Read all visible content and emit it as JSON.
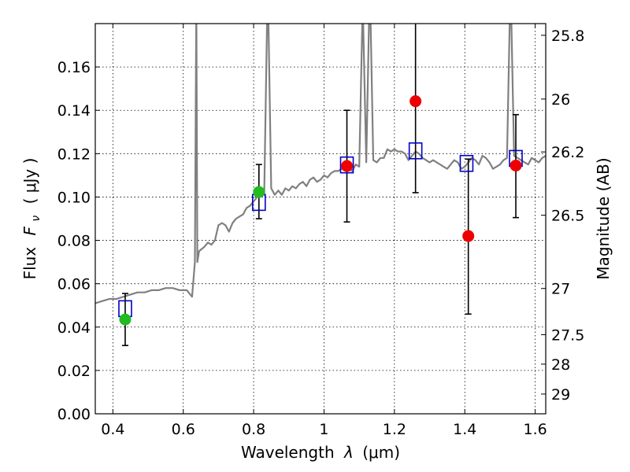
{
  "chart_data": {
    "type": "scatter",
    "xlabel_prefix": "Wavelength",
    "xlabel_symbol": "λ",
    "xlabel_unit": "(μm)",
    "ylabel_prefix": "Flux",
    "ylabel_symbol": "F",
    "ylabel_sub": "ν",
    "ylabel_unit": "( μJy )",
    "y2label": "Magnitude (AB)",
    "xlim": [
      0.35,
      1.63
    ],
    "ylim": [
      0.0,
      0.18
    ],
    "x_ticks": [
      0.4,
      0.6,
      0.8,
      1.0,
      1.2,
      1.4,
      1.6
    ],
    "x_tick_labels": [
      "0.4",
      "0.6",
      "0.8",
      "1",
      "1.2",
      "1.4",
      "1.6"
    ],
    "y_ticks": [
      0.0,
      0.02,
      0.04,
      0.06,
      0.08,
      0.1,
      0.12,
      0.14,
      0.16
    ],
    "y_tick_labels": [
      "0.00",
      "0.02",
      "0.04",
      "0.06",
      "0.08",
      "0.10",
      "0.12",
      "0.14",
      "0.16"
    ],
    "y2_ticks": [
      {
        "label": "25.8",
        "flux": 0.1746
      },
      {
        "label": "26",
        "flux": 0.1452
      },
      {
        "label": "26.2",
        "flux": 0.1208
      },
      {
        "label": "26.5",
        "flux": 0.0916
      },
      {
        "label": "27",
        "flux": 0.0578
      },
      {
        "label": "27.5",
        "flux": 0.0365
      },
      {
        "label": "28",
        "flux": 0.0229
      },
      {
        "label": "29",
        "flux": 0.0091
      }
    ],
    "grid": true,
    "colors": {
      "spectrum": "#808080",
      "model_box": "#0000cc",
      "green": "#22bb22",
      "red": "#ee0000",
      "errorbar": "#000000"
    },
    "series": [
      {
        "kind": "model_spectrum",
        "x": [
          0.35,
          0.37,
          0.39,
          0.41,
          0.43,
          0.45,
          0.47,
          0.49,
          0.51,
          0.53,
          0.55,
          0.57,
          0.59,
          0.61,
          0.625,
          0.633,
          0.637,
          0.64,
          0.645,
          0.652,
          0.66,
          0.67,
          0.68,
          0.69,
          0.7,
          0.71,
          0.72,
          0.73,
          0.74,
          0.75,
          0.76,
          0.77,
          0.78,
          0.79,
          0.8,
          0.81,
          0.82,
          0.83,
          0.84,
          0.85,
          0.86,
          0.87,
          0.88,
          0.89,
          0.9,
          0.91,
          0.92,
          0.93,
          0.94,
          0.95,
          0.96,
          0.97,
          0.98,
          0.99,
          1.0,
          1.01,
          1.02,
          1.03,
          1.04,
          1.05,
          1.06,
          1.07,
          1.08,
          1.09,
          1.1,
          1.11,
          1.12,
          1.13,
          1.14,
          1.15,
          1.16,
          1.17,
          1.18,
          1.19,
          1.2,
          1.21,
          1.22,
          1.23,
          1.24,
          1.25,
          1.26,
          1.27,
          1.28,
          1.29,
          1.3,
          1.31,
          1.32,
          1.33,
          1.34,
          1.35,
          1.36,
          1.37,
          1.38,
          1.39,
          1.4,
          1.41,
          1.42,
          1.43,
          1.44,
          1.45,
          1.46,
          1.47,
          1.48,
          1.49,
          1.5,
          1.51,
          1.52,
          1.53,
          1.54,
          1.55,
          1.56,
          1.57,
          1.58,
          1.59,
          1.6,
          1.61,
          1.62,
          1.63
        ],
        "y": [
          0.051,
          0.052,
          0.053,
          0.053,
          0.054,
          0.055,
          0.056,
          0.056,
          0.057,
          0.057,
          0.058,
          0.058,
          0.057,
          0.057,
          0.054,
          0.07,
          0.19,
          0.07,
          0.075,
          0.076,
          0.077,
          0.079,
          0.078,
          0.08,
          0.087,
          0.088,
          0.087,
          0.084,
          0.088,
          0.09,
          0.091,
          0.092,
          0.095,
          0.096,
          0.098,
          0.1,
          0.103,
          0.101,
          0.2,
          0.104,
          0.101,
          0.103,
          0.101,
          0.104,
          0.103,
          0.105,
          0.104,
          0.106,
          0.107,
          0.105,
          0.108,
          0.109,
          0.107,
          0.108,
          0.11,
          0.109,
          0.111,
          0.112,
          0.112,
          0.113,
          0.113,
          0.114,
          0.112,
          0.115,
          0.114,
          0.19,
          0.116,
          0.2,
          0.117,
          0.116,
          0.118,
          0.118,
          0.122,
          0.121,
          0.122,
          0.121,
          0.121,
          0.12,
          0.117,
          0.119,
          0.121,
          0.12,
          0.118,
          0.117,
          0.116,
          0.117,
          0.116,
          0.115,
          0.114,
          0.113,
          0.115,
          0.117,
          0.116,
          0.113,
          0.114,
          0.116,
          0.118,
          0.117,
          0.115,
          0.119,
          0.118,
          0.116,
          0.113,
          0.114,
          0.115,
          0.117,
          0.118,
          0.2,
          0.119,
          0.118,
          0.117,
          0.116,
          0.115,
          0.118,
          0.117,
          0.116,
          0.118,
          0.119
        ]
      },
      {
        "kind": "model_photometry",
        "x": [
          0.435,
          0.815,
          1.065,
          1.26,
          1.405,
          1.545
        ],
        "y": [
          0.0485,
          0.0975,
          0.1148,
          0.1213,
          0.1155,
          0.1178
        ]
      },
      {
        "kind": "observed_green",
        "x": [
          0.435,
          0.815
        ],
        "y": [
          0.0435,
          0.1023
        ],
        "yerr_low": [
          0.0315,
          0.09
        ],
        "yerr_high": [
          0.0555,
          0.115
        ]
      },
      {
        "kind": "observed_red",
        "x": [
          1.065,
          1.26,
          1.41,
          1.545
        ],
        "y": [
          0.1143,
          0.1442,
          0.082,
          0.1145
        ],
        "yerr_low": [
          0.0885,
          0.102,
          0.046,
          0.0905
        ],
        "yerr_high": [
          0.14,
          0.183,
          0.1175,
          0.138
        ]
      }
    ]
  }
}
